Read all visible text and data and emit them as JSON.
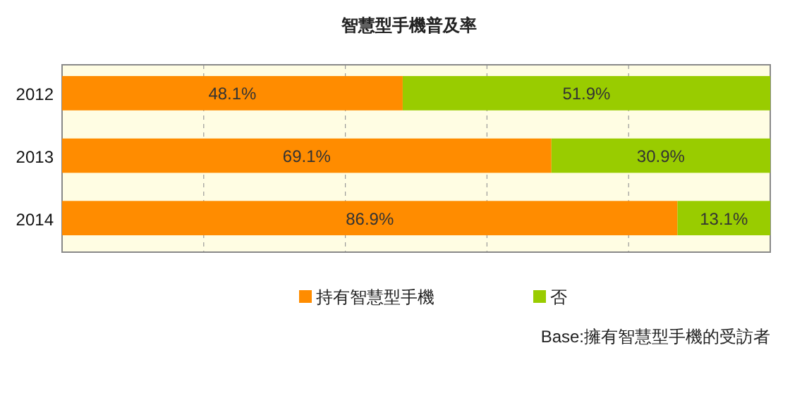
{
  "chart_data": {
    "type": "bar",
    "orientation": "horizontal",
    "stacked": true,
    "title": "智慧型手機普及率",
    "categories": [
      "2012",
      "2013",
      "2014"
    ],
    "series": [
      {
        "name": "持有智慧型手機",
        "color": "#ff8c00",
        "values": [
          48.1,
          69.1,
          86.9
        ],
        "value_labels": [
          "48.1%",
          "69.1%",
          "86.9%"
        ]
      },
      {
        "name": "否",
        "color": "#99cc00",
        "values": [
          51.9,
          30.9,
          13.1
        ],
        "value_labels": [
          "51.9%",
          "30.9%",
          "13.1%"
        ]
      }
    ],
    "xlim": [
      0,
      100
    ],
    "xticks": [
      {
        "value": 0,
        "label": null
      },
      {
        "value": 20,
        "label": null
      },
      {
        "value": 40,
        "label": null
      },
      {
        "value": 60,
        "label": null
      },
      {
        "value": 80,
        "label": null
      },
      {
        "value": 100,
        "label": null
      }
    ],
    "grid": "x",
    "legend": "bottom",
    "annotations": [
      "Base:擁有智慧型手機的受訪者"
    ]
  }
}
